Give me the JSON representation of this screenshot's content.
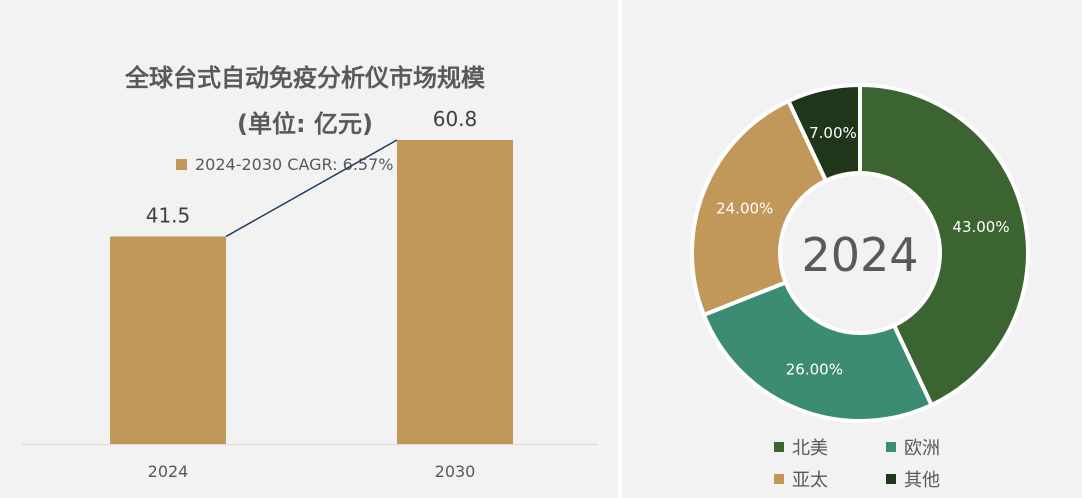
{
  "chart_data": [
    {
      "type": "bar",
      "title": "全球台式自动免疫分析仪市场规模",
      "subtitle": "(单位: 亿元)",
      "legend": "2024-2030 CAGR: 6.57%",
      "categories": [
        "2024",
        "2030"
      ],
      "values": [
        41.5,
        60.8
      ],
      "value_labels": [
        "41.5",
        "60.8"
      ],
      "ylim": [
        0,
        70
      ],
      "connector_line": true,
      "colors": {
        "bar": "#c1975a",
        "connector": "#1f3a5a"
      }
    },
    {
      "type": "pie",
      "variant": "donut",
      "center_label": "2024",
      "slices": [
        {
          "name": "北美",
          "value": 43.0,
          "label": "43.00%",
          "color": "#3b6431"
        },
        {
          "name": "欧洲",
          "value": 26.0,
          "label": "26.00%",
          "color": "#3b8c72"
        },
        {
          "name": "亚太",
          "value": 24.0,
          "label": "24.00%",
          "color": "#c1975a"
        },
        {
          "name": "其他",
          "value": 7.0,
          "label": "7.00%",
          "color": "#1f361b"
        }
      ],
      "legend_position": "bottom"
    }
  ]
}
